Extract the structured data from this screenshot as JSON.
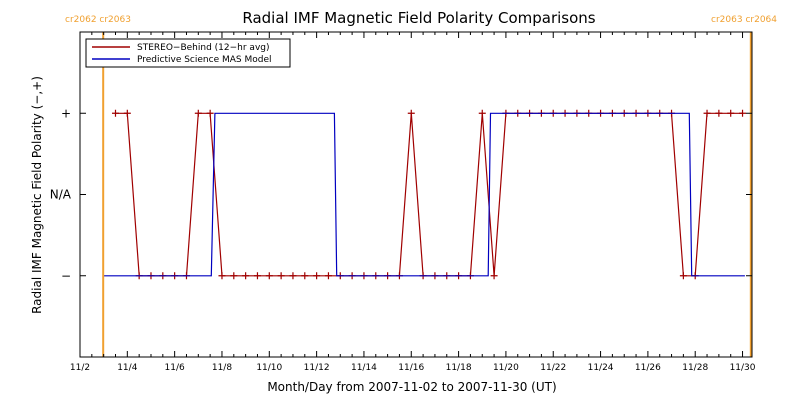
{
  "chart_data": {
    "type": "line",
    "title": "Radial IMF Magnetic Field Polarity Comparisons",
    "xlabel": "Month/Day from 2007-11-02 to 2007-11-30 (UT)",
    "ylabel": "Radial IMF Magnetic Field Polarity (−,+)",
    "x_unit": "days after 2007-11-02",
    "xlim": [
      0,
      28.4
    ],
    "x_ticks": [
      {
        "x": 0,
        "label": "11/2"
      },
      {
        "x": 2,
        "label": "11/4"
      },
      {
        "x": 4,
        "label": "11/6"
      },
      {
        "x": 6,
        "label": "11/8"
      },
      {
        "x": 8,
        "label": "11/10"
      },
      {
        "x": 10,
        "label": "11/12"
      },
      {
        "x": 12,
        "label": "11/14"
      },
      {
        "x": 14,
        "label": "11/16"
      },
      {
        "x": 16,
        "label": "11/18"
      },
      {
        "x": 18,
        "label": "11/20"
      },
      {
        "x": 20,
        "label": "11/22"
      },
      {
        "x": 22,
        "label": "11/24"
      },
      {
        "x": 24,
        "label": "11/26"
      },
      {
        "x": 26,
        "label": "11/28"
      },
      {
        "x": 28,
        "label": "11/30"
      }
    ],
    "ylim": [
      -2,
      2
    ],
    "y_levels": [
      {
        "y": 1,
        "label": "+"
      },
      {
        "y": 0,
        "label": "N/A"
      },
      {
        "y": -1,
        "label": "−"
      }
    ],
    "vlines": [
      {
        "x": 0.98,
        "color": "#f0a030",
        "label": "cr2062 cr2063",
        "label_anchor": "left"
      },
      {
        "x": 28.35,
        "color": "#f0a030",
        "label": "cr2063 cr2064",
        "label_anchor": "right"
      }
    ],
    "legend_position": "top-left",
    "series": [
      {
        "name": "STEREO−Behind (12−hr avg)",
        "color": "#a00000",
        "marker": "plus",
        "step": false,
        "x": [
          1.5,
          2.0,
          2.5,
          3.0,
          3.5,
          4.0,
          4.5,
          5.0,
          5.5,
          6.0,
          6.5,
          7.0,
          7.5,
          8.0,
          8.5,
          9.0,
          9.5,
          10.0,
          10.5,
          11.0,
          11.5,
          12.0,
          12.5,
          13.0,
          13.5,
          14.0,
          14.5,
          15.0,
          15.5,
          16.0,
          16.5,
          17.0,
          17.5,
          18.0,
          18.5,
          19.0,
          19.5,
          20.0,
          20.5,
          21.0,
          21.5,
          22.0,
          22.5,
          23.0,
          23.5,
          24.0,
          24.5,
          25.0,
          25.5,
          26.0,
          26.5,
          27.0,
          27.5,
          28.0
        ],
        "y": [
          1,
          1,
          -1,
          -1,
          -1,
          -1,
          -1,
          1,
          1,
          -1,
          -1,
          -1,
          -1,
          -1,
          -1,
          -1,
          -1,
          -1,
          -1,
          -1,
          -1,
          -1,
          -1,
          -1,
          -1,
          1,
          -1,
          -1,
          -1,
          -1,
          -1,
          1,
          -1,
          1,
          1,
          1,
          1,
          1,
          1,
          1,
          1,
          1,
          1,
          1,
          1,
          1,
          1,
          1,
          -1,
          -1,
          1,
          1,
          1,
          1
        ]
      },
      {
        "name": "Predictive Science MAS Model",
        "color": "#0000c0",
        "marker": "none",
        "step": true,
        "x": [
          1.0,
          5.55,
          5.7,
          10.75,
          10.85,
          17.25,
          17.35,
          25.75,
          25.85,
          28.1
        ],
        "y": [
          -1,
          -1,
          1,
          1,
          -1,
          -1,
          1,
          1,
          -1,
          -1
        ]
      }
    ]
  }
}
